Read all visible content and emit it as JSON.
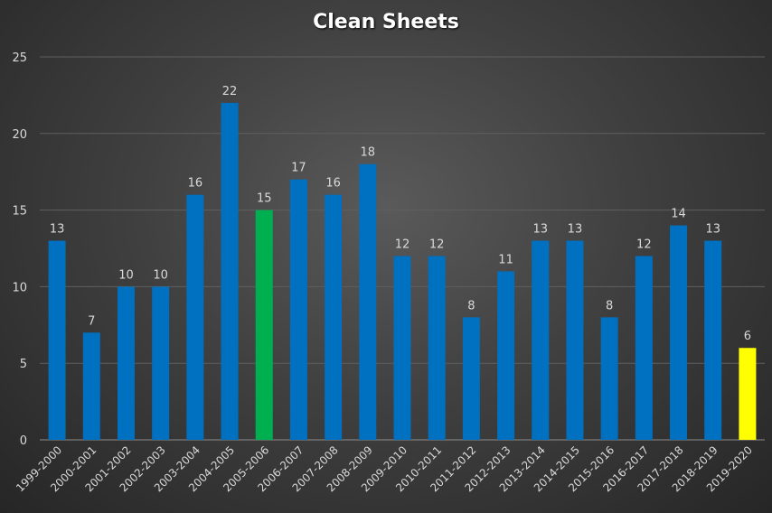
{
  "chart_data": {
    "type": "bar",
    "title": "Clean Sheets",
    "xlabel": "",
    "ylabel": "",
    "ylim": [
      0,
      25
    ],
    "yticks": [
      0,
      5,
      10,
      15,
      20,
      25
    ],
    "grid": true,
    "categories": [
      "1999-2000",
      "2000-2001",
      "2001-2002",
      "2002-2003",
      "2003-2004",
      "2004-2005",
      "2005-2006",
      "2006-2007",
      "2007-2008",
      "2008-2009",
      "2009-2010",
      "2010-2011",
      "2011-2012",
      "2012-2013",
      "2013-2014",
      "2014-2015",
      "2015-2016",
      "2016-2017",
      "2017-2018",
      "2018-2019",
      "2019-2020"
    ],
    "values": [
      13,
      7,
      10,
      10,
      16,
      22,
      15,
      17,
      16,
      18,
      12,
      12,
      8,
      11,
      13,
      13,
      8,
      12,
      14,
      13,
      6
    ],
    "colors": {
      "default": "#0070c0",
      "highlight_green": "#00b050",
      "highlight_yellow": "#ffff00",
      "grid": "#5f5f5f",
      "axis": "#8c8c8c",
      "text": "#d9d9d9"
    },
    "highlights": {
      "2005-2006": "highlight_green",
      "2019-2020": "highlight_yellow"
    }
  }
}
